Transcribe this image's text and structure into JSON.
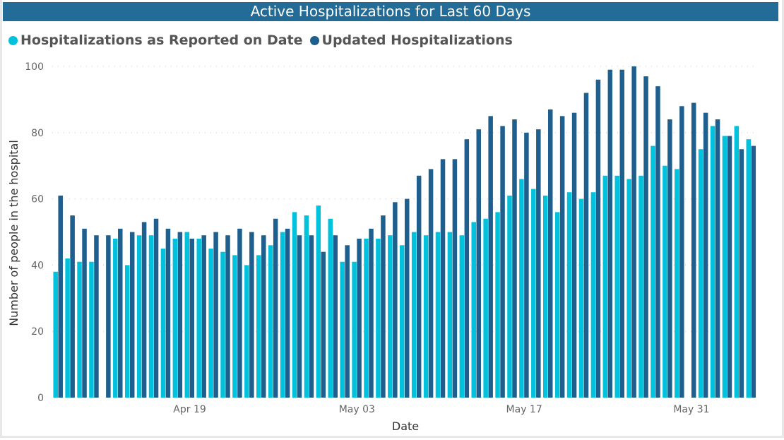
{
  "chart_data": {
    "type": "bar",
    "title": "Active Hospitalizations for Last 60 Days",
    "xlabel": "Date",
    "ylabel": "Number of people in the hospital",
    "ylim": [
      0,
      100
    ],
    "yticks": [
      0,
      20,
      40,
      60,
      80,
      100
    ],
    "grid": true,
    "legend_position": "top-left",
    "start_date": "Apr 08",
    "xticks": [
      {
        "index": 11,
        "label": "Apr 19"
      },
      {
        "index": 25,
        "label": "May 03"
      },
      {
        "index": 39,
        "label": "May 17"
      },
      {
        "index": 53,
        "label": "May 31"
      }
    ],
    "series": [
      {
        "name": "Hospitalizations as Reported on Date",
        "color": "#00c2dc",
        "values": [
          38,
          42,
          41,
          41,
          null,
          48,
          40,
          49,
          49,
          45,
          48,
          50,
          48,
          45,
          44,
          43,
          40,
          43,
          46,
          50,
          56,
          55,
          58,
          54,
          41,
          41,
          48,
          48,
          49,
          46,
          50,
          49,
          50,
          50,
          49,
          53,
          54,
          56,
          61,
          66,
          63,
          61,
          56,
          62,
          60,
          62,
          67,
          67,
          66,
          67,
          76,
          70,
          69,
          null,
          75,
          82,
          79,
          82,
          78
        ]
      },
      {
        "name": "Updated Hospitalizations",
        "color": "#1f5f8d",
        "values": [
          61,
          55,
          51,
          49,
          49,
          51,
          50,
          53,
          54,
          51,
          50,
          48,
          49,
          50,
          49,
          51,
          50,
          49,
          54,
          51,
          49,
          49,
          44,
          49,
          46,
          48,
          51,
          55,
          59,
          60,
          67,
          69,
          72,
          72,
          78,
          81,
          85,
          82,
          84,
          80,
          81,
          87,
          85,
          86,
          92,
          96,
          99,
          99,
          100,
          97,
          94,
          84,
          88,
          89,
          86,
          84,
          79,
          75,
          76
        ]
      }
    ]
  }
}
